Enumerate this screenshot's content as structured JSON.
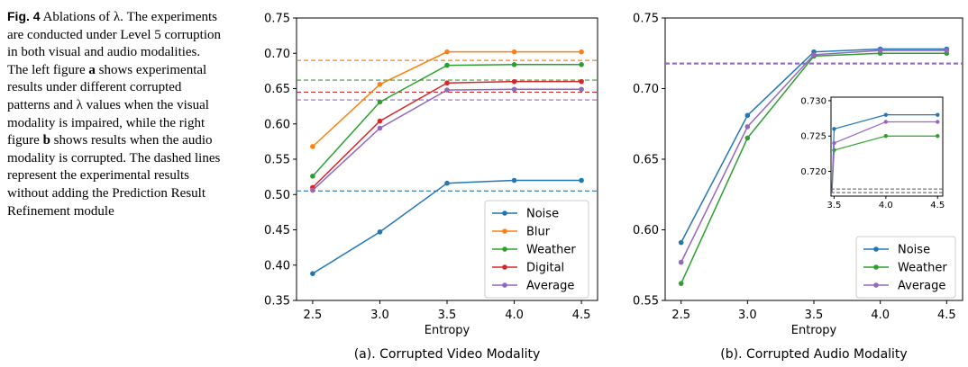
{
  "caption": {
    "fig_label": "Fig. 4",
    "lines": [
      {
        "segments": [
          {
            "t": "Ablations of λ. The",
            "b": false
          }
        ]
      },
      {
        "segments": [
          {
            "t": "experiments are conducted",
            "b": false
          }
        ]
      },
      {
        "segments": [
          {
            "t": "under Level 5 corruption in both",
            "b": false
          }
        ]
      },
      {
        "segments": [
          {
            "t": "visual and audio modalities. The",
            "b": false
          }
        ]
      },
      {
        "segments": [
          {
            "t": "left figure ",
            "b": false
          },
          {
            "t": "a",
            "b": true
          },
          {
            "t": " shows experimental",
            "b": false
          }
        ]
      },
      {
        "segments": [
          {
            "t": "results under different corrupted",
            "b": false
          }
        ]
      },
      {
        "segments": [
          {
            "t": "patterns and λ values when the",
            "b": false
          }
        ]
      },
      {
        "segments": [
          {
            "t": "visual modality is impaired,",
            "b": false
          }
        ]
      },
      {
        "segments": [
          {
            "t": "while the right figure ",
            "b": false
          },
          {
            "t": "b",
            "b": true
          },
          {
            "t": " shows",
            "b": false
          }
        ]
      },
      {
        "segments": [
          {
            "t": "results when the audio modality",
            "b": false
          }
        ]
      },
      {
        "segments": [
          {
            "t": "is corrupted. The dashed lines",
            "b": false
          }
        ]
      },
      {
        "segments": [
          {
            "t": "represent the experimental",
            "b": false
          }
        ]
      },
      {
        "segments": [
          {
            "t": "results without adding the",
            "b": false
          }
        ]
      },
      {
        "segments": [
          {
            "t": "Prediction Result Refinement",
            "b": false
          }
        ]
      },
      {
        "segments": [
          {
            "t": "module",
            "b": false
          }
        ]
      }
    ]
  },
  "chart_data": [
    {
      "type": "line",
      "title": "(a). Corrupted Video Modality",
      "xlabel": "Entropy",
      "ylabel": "",
      "x": [
        2.5,
        3.0,
        3.5,
        4.0,
        4.5
      ],
      "x_ticks": [
        "2.5",
        "3.0",
        "3.5",
        "4.0",
        "4.5"
      ],
      "ylim": [
        0.35,
        0.75
      ],
      "y_ticks": [
        "0.35",
        "0.40",
        "0.45",
        "0.50",
        "0.55",
        "0.60",
        "0.65",
        "0.70",
        "0.75"
      ],
      "grid": false,
      "legend_position": "lower-right",
      "series": [
        {
          "name": "Noise",
          "color": "#1f77b4",
          "values": [
            0.388,
            0.447,
            0.516,
            0.52,
            0.52
          ],
          "baseline": 0.505
        },
        {
          "name": "Blur",
          "color": "#ff7f0e",
          "values": [
            0.568,
            0.656,
            0.702,
            0.702,
            0.702
          ],
          "baseline": 0.69
        },
        {
          "name": "Weather",
          "color": "#2ca02c",
          "values": [
            0.526,
            0.631,
            0.683,
            0.684,
            0.684
          ],
          "baseline": 0.662
        },
        {
          "name": "Digital",
          "color": "#d62728",
          "values": [
            0.51,
            0.604,
            0.658,
            0.66,
            0.66
          ],
          "baseline": 0.645
        },
        {
          "name": "Average",
          "color": "#9467bd",
          "values": [
            0.506,
            0.594,
            0.648,
            0.649,
            0.649
          ],
          "baseline": 0.634
        }
      ]
    },
    {
      "type": "line",
      "title": "(b). Corrupted Audio Modality",
      "xlabel": "Entropy",
      "ylabel": "",
      "x": [
        2.5,
        3.0,
        3.5,
        4.0,
        4.5
      ],
      "x_ticks": [
        "2.5",
        "3.0",
        "3.5",
        "4.0",
        "4.5"
      ],
      "ylim": [
        0.55,
        0.75
      ],
      "y_ticks": [
        "0.55",
        "0.60",
        "0.65",
        "0.70",
        "0.75"
      ],
      "grid": false,
      "legend_position": "lower-right",
      "series": [
        {
          "name": "Noise",
          "color": "#1f77b4",
          "values": [
            0.591,
            0.681,
            0.726,
            0.728,
            0.728
          ],
          "baseline": 0.718
        },
        {
          "name": "Weather",
          "color": "#2ca02c",
          "values": [
            0.562,
            0.665,
            0.723,
            0.725,
            0.725
          ],
          "baseline": 0.7175
        },
        {
          "name": "Average",
          "color": "#9467bd",
          "values": [
            0.577,
            0.673,
            0.724,
            0.727,
            0.727
          ],
          "baseline": 0.7178
        }
      ],
      "inset": {
        "x": [
          3.5,
          4.0,
          4.5
        ],
        "x_ticks": [
          "3.5",
          "4.0",
          "4.5"
        ],
        "xlim": [
          3.47,
          4.55
        ],
        "ylim": [
          0.7165,
          0.7305
        ],
        "y_ticks": [
          "0.720",
          "0.725",
          "0.730"
        ],
        "series": [
          {
            "name": "Noise",
            "color": "#1f77b4",
            "values": [
              0.726,
              0.728,
              0.728
            ]
          },
          {
            "name": "Weather",
            "color": "#2ca02c",
            "values": [
              0.723,
              0.725,
              0.725
            ]
          },
          {
            "name": "Average",
            "color": "#9467bd",
            "values": [
              0.724,
              0.727,
              0.727
            ]
          }
        ],
        "baselines": [
          0.7175,
          0.717
        ]
      }
    }
  ]
}
